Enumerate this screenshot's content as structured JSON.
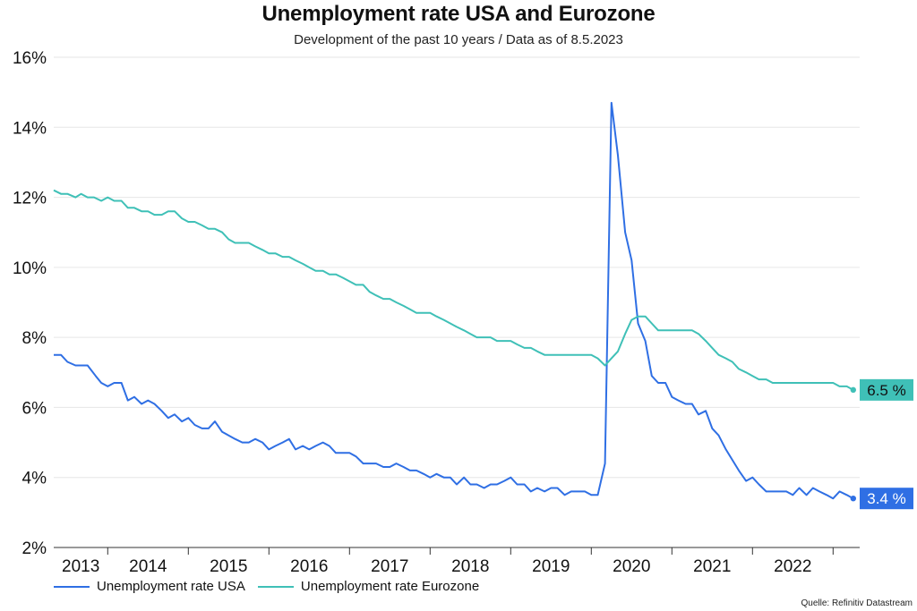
{
  "chart_data": {
    "type": "line",
    "title": "Unemployment rate USA and Eurozone",
    "subtitle": "Development of the past 10 years / Data as of 8.5.2023",
    "source": "Quelle: Refinitiv Datastream",
    "ylim": [
      2,
      16
    ],
    "yticks": [
      2,
      4,
      6,
      8,
      10,
      12,
      14,
      16
    ],
    "ytick_labels": [
      "2%",
      "4%",
      "6%",
      "8%",
      "10%",
      "12%",
      "14%",
      "16%"
    ],
    "xlim": [
      2013.33,
      2023.33
    ],
    "x_labels": [
      "2013",
      "2014",
      "2015",
      "2016",
      "2017",
      "2018",
      "2019",
      "2020",
      "2021",
      "2022"
    ],
    "grid": true,
    "legend_position": "bottom-left",
    "series": [
      {
        "name": "Unemployment rate USA",
        "color": "#2f6fe4",
        "end_label": "3.4 %",
        "points": [
          [
            2013.33,
            7.5
          ],
          [
            2013.42,
            7.5
          ],
          [
            2013.5,
            7.3
          ],
          [
            2013.6,
            7.2
          ],
          [
            2013.75,
            7.2
          ],
          [
            2013.85,
            6.9
          ],
          [
            2013.92,
            6.7
          ],
          [
            2014.0,
            6.6
          ],
          [
            2014.08,
            6.7
          ],
          [
            2014.17,
            6.7
          ],
          [
            2014.25,
            6.2
          ],
          [
            2014.33,
            6.3
          ],
          [
            2014.42,
            6.1
          ],
          [
            2014.5,
            6.2
          ],
          [
            2014.58,
            6.1
          ],
          [
            2014.67,
            5.9
          ],
          [
            2014.75,
            5.7
          ],
          [
            2014.83,
            5.8
          ],
          [
            2014.92,
            5.6
          ],
          [
            2015.0,
            5.7
          ],
          [
            2015.08,
            5.5
          ],
          [
            2015.17,
            5.4
          ],
          [
            2015.25,
            5.4
          ],
          [
            2015.33,
            5.6
          ],
          [
            2015.42,
            5.3
          ],
          [
            2015.5,
            5.2
          ],
          [
            2015.58,
            5.1
          ],
          [
            2015.67,
            5.0
          ],
          [
            2015.75,
            5.0
          ],
          [
            2015.83,
            5.1
          ],
          [
            2015.92,
            5.0
          ],
          [
            2016.0,
            4.8
          ],
          [
            2016.08,
            4.9
          ],
          [
            2016.17,
            5.0
          ],
          [
            2016.25,
            5.1
          ],
          [
            2016.33,
            4.8
          ],
          [
            2016.42,
            4.9
          ],
          [
            2016.5,
            4.8
          ],
          [
            2016.58,
            4.9
          ],
          [
            2016.67,
            5.0
          ],
          [
            2016.75,
            4.9
          ],
          [
            2016.83,
            4.7
          ],
          [
            2016.92,
            4.7
          ],
          [
            2017.0,
            4.7
          ],
          [
            2017.08,
            4.6
          ],
          [
            2017.17,
            4.4
          ],
          [
            2017.25,
            4.4
          ],
          [
            2017.33,
            4.4
          ],
          [
            2017.42,
            4.3
          ],
          [
            2017.5,
            4.3
          ],
          [
            2017.58,
            4.4
          ],
          [
            2017.67,
            4.3
          ],
          [
            2017.75,
            4.2
          ],
          [
            2017.83,
            4.2
          ],
          [
            2017.92,
            4.1
          ],
          [
            2018.0,
            4.0
          ],
          [
            2018.08,
            4.1
          ],
          [
            2018.17,
            4.0
          ],
          [
            2018.25,
            4.0
          ],
          [
            2018.33,
            3.8
          ],
          [
            2018.42,
            4.0
          ],
          [
            2018.5,
            3.8
          ],
          [
            2018.58,
            3.8
          ],
          [
            2018.67,
            3.7
          ],
          [
            2018.75,
            3.8
          ],
          [
            2018.83,
            3.8
          ],
          [
            2018.92,
            3.9
          ],
          [
            2019.0,
            4.0
          ],
          [
            2019.08,
            3.8
          ],
          [
            2019.17,
            3.8
          ],
          [
            2019.25,
            3.6
          ],
          [
            2019.33,
            3.7
          ],
          [
            2019.42,
            3.6
          ],
          [
            2019.5,
            3.7
          ],
          [
            2019.58,
            3.7
          ],
          [
            2019.67,
            3.5
          ],
          [
            2019.75,
            3.6
          ],
          [
            2019.83,
            3.6
          ],
          [
            2019.92,
            3.6
          ],
          [
            2020.0,
            3.5
          ],
          [
            2020.08,
            3.5
          ],
          [
            2020.17,
            4.4
          ],
          [
            2020.25,
            14.7
          ],
          [
            2020.33,
            13.2
          ],
          [
            2020.42,
            11.0
          ],
          [
            2020.5,
            10.2
          ],
          [
            2020.58,
            8.4
          ],
          [
            2020.67,
            7.9
          ],
          [
            2020.75,
            6.9
          ],
          [
            2020.83,
            6.7
          ],
          [
            2020.92,
            6.7
          ],
          [
            2021.0,
            6.3
          ],
          [
            2021.08,
            6.2
          ],
          [
            2021.17,
            6.1
          ],
          [
            2021.25,
            6.1
          ],
          [
            2021.33,
            5.8
          ],
          [
            2021.42,
            5.9
          ],
          [
            2021.5,
            5.4
          ],
          [
            2021.58,
            5.2
          ],
          [
            2021.67,
            4.8
          ],
          [
            2021.75,
            4.5
          ],
          [
            2021.83,
            4.2
          ],
          [
            2021.92,
            3.9
          ],
          [
            2022.0,
            4.0
          ],
          [
            2022.08,
            3.8
          ],
          [
            2022.17,
            3.6
          ],
          [
            2022.25,
            3.6
          ],
          [
            2022.33,
            3.6
          ],
          [
            2022.42,
            3.6
          ],
          [
            2022.5,
            3.5
          ],
          [
            2022.58,
            3.7
          ],
          [
            2022.67,
            3.5
          ],
          [
            2022.75,
            3.7
          ],
          [
            2022.83,
            3.6
          ],
          [
            2022.92,
            3.5
          ],
          [
            2023.0,
            3.4
          ],
          [
            2023.08,
            3.6
          ],
          [
            2023.17,
            3.5
          ],
          [
            2023.25,
            3.4
          ]
        ]
      },
      {
        "name": "Unemployment rate Eurozone",
        "color": "#3fc0b7",
        "end_label": "6.5 %",
        "points": [
          [
            2013.33,
            12.2
          ],
          [
            2013.42,
            12.1
          ],
          [
            2013.5,
            12.1
          ],
          [
            2013.6,
            12.0
          ],
          [
            2013.67,
            12.1
          ],
          [
            2013.75,
            12.0
          ],
          [
            2013.83,
            12.0
          ],
          [
            2013.92,
            11.9
          ],
          [
            2014.0,
            12.0
          ],
          [
            2014.08,
            11.9
          ],
          [
            2014.17,
            11.9
          ],
          [
            2014.25,
            11.7
          ],
          [
            2014.33,
            11.7
          ],
          [
            2014.42,
            11.6
          ],
          [
            2014.5,
            11.6
          ],
          [
            2014.58,
            11.5
          ],
          [
            2014.67,
            11.5
          ],
          [
            2014.75,
            11.6
          ],
          [
            2014.83,
            11.6
          ],
          [
            2014.92,
            11.4
          ],
          [
            2015.0,
            11.3
          ],
          [
            2015.08,
            11.3
          ],
          [
            2015.17,
            11.2
          ],
          [
            2015.25,
            11.1
          ],
          [
            2015.33,
            11.1
          ],
          [
            2015.42,
            11.0
          ],
          [
            2015.5,
            10.8
          ],
          [
            2015.58,
            10.7
          ],
          [
            2015.67,
            10.7
          ],
          [
            2015.75,
            10.7
          ],
          [
            2015.83,
            10.6
          ],
          [
            2015.92,
            10.5
          ],
          [
            2016.0,
            10.4
          ],
          [
            2016.08,
            10.4
          ],
          [
            2016.17,
            10.3
          ],
          [
            2016.25,
            10.3
          ],
          [
            2016.33,
            10.2
          ],
          [
            2016.42,
            10.1
          ],
          [
            2016.5,
            10.0
          ],
          [
            2016.58,
            9.9
          ],
          [
            2016.67,
            9.9
          ],
          [
            2016.75,
            9.8
          ],
          [
            2016.83,
            9.8
          ],
          [
            2016.92,
            9.7
          ],
          [
            2017.0,
            9.6
          ],
          [
            2017.08,
            9.5
          ],
          [
            2017.17,
            9.5
          ],
          [
            2017.25,
            9.3
          ],
          [
            2017.33,
            9.2
          ],
          [
            2017.42,
            9.1
          ],
          [
            2017.5,
            9.1
          ],
          [
            2017.58,
            9.0
          ],
          [
            2017.67,
            8.9
          ],
          [
            2017.75,
            8.8
          ],
          [
            2017.83,
            8.7
          ],
          [
            2017.92,
            8.7
          ],
          [
            2018.0,
            8.7
          ],
          [
            2018.08,
            8.6
          ],
          [
            2018.17,
            8.5
          ],
          [
            2018.25,
            8.4
          ],
          [
            2018.33,
            8.3
          ],
          [
            2018.42,
            8.2
          ],
          [
            2018.5,
            8.1
          ],
          [
            2018.58,
            8.0
          ],
          [
            2018.67,
            8.0
          ],
          [
            2018.75,
            8.0
          ],
          [
            2018.83,
            7.9
          ],
          [
            2018.92,
            7.9
          ],
          [
            2019.0,
            7.9
          ],
          [
            2019.08,
            7.8
          ],
          [
            2019.17,
            7.7
          ],
          [
            2019.25,
            7.7
          ],
          [
            2019.33,
            7.6
          ],
          [
            2019.42,
            7.5
          ],
          [
            2019.5,
            7.5
          ],
          [
            2019.58,
            7.5
          ],
          [
            2019.67,
            7.5
          ],
          [
            2019.75,
            7.5
          ],
          [
            2019.83,
            7.5
          ],
          [
            2019.92,
            7.5
          ],
          [
            2020.0,
            7.5
          ],
          [
            2020.08,
            7.4
          ],
          [
            2020.17,
            7.2
          ],
          [
            2020.25,
            7.4
          ],
          [
            2020.33,
            7.6
          ],
          [
            2020.42,
            8.1
          ],
          [
            2020.5,
            8.5
          ],
          [
            2020.58,
            8.6
          ],
          [
            2020.67,
            8.6
          ],
          [
            2020.75,
            8.4
          ],
          [
            2020.83,
            8.2
          ],
          [
            2020.92,
            8.2
          ],
          [
            2021.0,
            8.2
          ],
          [
            2021.08,
            8.2
          ],
          [
            2021.17,
            8.2
          ],
          [
            2021.25,
            8.2
          ],
          [
            2021.33,
            8.1
          ],
          [
            2021.42,
            7.9
          ],
          [
            2021.5,
            7.7
          ],
          [
            2021.58,
            7.5
          ],
          [
            2021.67,
            7.4
          ],
          [
            2021.75,
            7.3
          ],
          [
            2021.83,
            7.1
          ],
          [
            2021.92,
            7.0
          ],
          [
            2022.0,
            6.9
          ],
          [
            2022.08,
            6.8
          ],
          [
            2022.17,
            6.8
          ],
          [
            2022.25,
            6.7
          ],
          [
            2022.33,
            6.7
          ],
          [
            2022.42,
            6.7
          ],
          [
            2022.5,
            6.7
          ],
          [
            2022.58,
            6.7
          ],
          [
            2022.67,
            6.7
          ],
          [
            2022.75,
            6.7
          ],
          [
            2022.83,
            6.7
          ],
          [
            2022.92,
            6.7
          ],
          [
            2023.0,
            6.7
          ],
          [
            2023.08,
            6.6
          ],
          [
            2023.17,
            6.6
          ],
          [
            2023.25,
            6.5
          ]
        ]
      }
    ]
  }
}
